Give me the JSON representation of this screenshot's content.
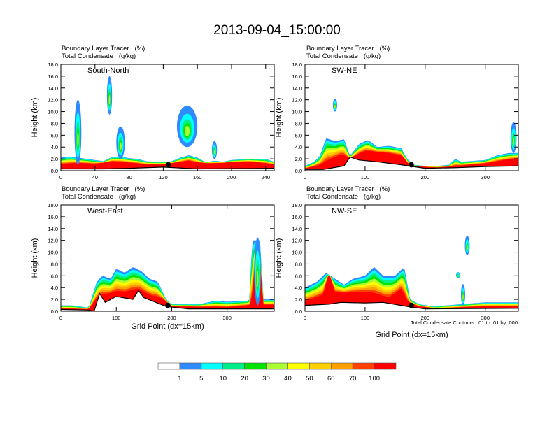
{
  "chart_data": {
    "type": "heatmap",
    "title": "2013-09-04_15:00:00",
    "subtitle_line1": "Boundary Layer Tracer   (%)",
    "subtitle_line2": "Total Condensate   (g/kg)",
    "contour_note": "Total Condensate Contours: .01 to .01 by .000",
    "xlabel": "Grid Point (dx=15km)",
    "ylabel": "Height (km)",
    "yticks": [
      "0.0",
      "2.0",
      "4.0",
      "6.0",
      "8.0",
      "10.0",
      "12.0",
      "14.0",
      "16.0",
      "18.0"
    ],
    "ylim": [
      0,
      18
    ],
    "colorbar": {
      "levels": [
        "1",
        "5",
        "10",
        "20",
        "30",
        "40",
        "50",
        "60",
        "70",
        "100"
      ],
      "colors": [
        "#ffffff",
        "#2e8bff",
        "#00ffff",
        "#00ee88",
        "#00e400",
        "#aaff33",
        "#ffff00",
        "#ffd000",
        "#ffa000",
        "#ff4000",
        "#ff0000"
      ]
    },
    "panels": [
      {
        "name": "South-North",
        "xlim": [
          0,
          250
        ],
        "xticks": [
          "0",
          "40",
          "80",
          "120",
          "160",
          "200",
          "240"
        ],
        "xtick_values": [
          0,
          40,
          80,
          120,
          160,
          200,
          240
        ],
        "marker": {
          "x": 126,
          "y": 1.0
        },
        "tracer_top": [
          [
            0,
            2.2
          ],
          [
            10,
            2.4
          ],
          [
            20,
            2.2
          ],
          [
            30,
            2.0
          ],
          [
            40,
            1.8
          ],
          [
            50,
            1.6
          ],
          [
            60,
            2.3
          ],
          [
            70,
            2.4
          ],
          [
            80,
            2.1
          ],
          [
            90,
            2.0
          ],
          [
            100,
            1.6
          ],
          [
            110,
            1.5
          ],
          [
            120,
            1.5
          ],
          [
            130,
            1.6
          ],
          [
            140,
            2.2
          ],
          [
            150,
            2.6
          ],
          [
            160,
            2.2
          ],
          [
            170,
            1.4
          ],
          [
            180,
            1.7
          ],
          [
            190,
            1.5
          ],
          [
            200,
            1.8
          ],
          [
            220,
            2.0
          ],
          [
            240,
            2.0
          ],
          [
            250,
            1.5
          ]
        ],
        "cores": [
          [
            0,
            1.0
          ],
          [
            20,
            1.2
          ],
          [
            40,
            1.1
          ],
          [
            60,
            1.5
          ],
          [
            80,
            1.3
          ],
          [
            100,
            1.0
          ],
          [
            120,
            1.0
          ],
          [
            140,
            1.4
          ],
          [
            150,
            1.6
          ],
          [
            160,
            1.3
          ],
          [
            180,
            1.2
          ],
          [
            200,
            1.4
          ],
          [
            220,
            1.5
          ],
          [
            250,
            1.0
          ]
        ],
        "plumes": [
          {
            "x": 20,
            "y0": 1,
            "y1": 12,
            "w": 4
          },
          {
            "x": 57,
            "y0": 9.5,
            "y1": 16,
            "w": 3
          },
          {
            "x": 148,
            "y0": 4,
            "y1": 11,
            "w": 12
          },
          {
            "x": 180,
            "y0": 2,
            "y1": 5,
            "w": 3
          },
          {
            "x": 70,
            "y0": 2,
            "y1": 7.5,
            "w": 5
          }
        ],
        "terrain": [
          [
            0,
            0.3
          ],
          [
            50,
            0.3
          ],
          [
            80,
            0.4
          ],
          [
            120,
            0.6
          ],
          [
            160,
            0.3
          ],
          [
            250,
            0.4
          ]
        ]
      },
      {
        "name": "SW-NE",
        "xlim": [
          0,
          355
        ],
        "xticks": [
          "0",
          "100",
          "200",
          "300"
        ],
        "xtick_values": [
          0,
          100,
          200,
          300
        ],
        "marker": {
          "x": 177,
          "y": 1.0
        },
        "tracer_top": [
          [
            0,
            0.8
          ],
          [
            15,
            1.5
          ],
          [
            25,
            2.5
          ],
          [
            35,
            5.5
          ],
          [
            50,
            5.0
          ],
          [
            65,
            5.3
          ],
          [
            75,
            2.5
          ],
          [
            90,
            4.5
          ],
          [
            105,
            5.2
          ],
          [
            120,
            4.0
          ],
          [
            140,
            4.2
          ],
          [
            160,
            3.8
          ],
          [
            170,
            2.0
          ],
          [
            180,
            1.0
          ],
          [
            200,
            0.8
          ],
          [
            220,
            0.8
          ],
          [
            240,
            1.0
          ],
          [
            250,
            2.0
          ],
          [
            260,
            1.5
          ],
          [
            300,
            1.8
          ],
          [
            320,
            2.6
          ],
          [
            340,
            3.0
          ],
          [
            355,
            3.0
          ]
        ],
        "cores": [
          [
            0,
            0.3
          ],
          [
            30,
            1.0
          ],
          [
            60,
            2.5
          ],
          [
            75,
            2.0
          ],
          [
            100,
            3.2
          ],
          [
            130,
            3.0
          ],
          [
            160,
            2.5
          ],
          [
            175,
            0.8
          ],
          [
            220,
            0.5
          ],
          [
            260,
            0.8
          ],
          [
            300,
            1.2
          ],
          [
            340,
            1.8
          ],
          [
            355,
            2.0
          ]
        ],
        "plumes": [
          {
            "x": 50,
            "y0": 10,
            "y1": 12.2,
            "w": 3
          },
          {
            "x": 347,
            "y0": 3,
            "y1": 8.2,
            "w": 5
          }
        ],
        "terrain": [
          [
            0,
            0.2
          ],
          [
            30,
            0.2
          ],
          [
            65,
            0.8
          ],
          [
            75,
            2.3
          ],
          [
            90,
            1.8
          ],
          [
            120,
            1.5
          ],
          [
            160,
            1.0
          ],
          [
            200,
            0.4
          ],
          [
            250,
            0.5
          ],
          [
            300,
            0.7
          ],
          [
            355,
            0.8
          ]
        ]
      },
      {
        "name": "West-East",
        "xlim": [
          0,
          385
        ],
        "xticks": [
          "0",
          "100",
          "200",
          "300"
        ],
        "xtick_values": [
          0,
          100,
          200,
          300
        ],
        "marker": {
          "x": 193,
          "y": 1.0
        },
        "tracer_top": [
          [
            0,
            1.0
          ],
          [
            20,
            1.0
          ],
          [
            50,
            0.6
          ],
          [
            65,
            5.0
          ],
          [
            75,
            6.0
          ],
          [
            90,
            5.5
          ],
          [
            100,
            7.2
          ],
          [
            115,
            6.5
          ],
          [
            130,
            7.5
          ],
          [
            145,
            6.8
          ],
          [
            160,
            5.5
          ],
          [
            175,
            5.0
          ],
          [
            190,
            2.0
          ],
          [
            200,
            1.2
          ],
          [
            250,
            1.2
          ],
          [
            280,
            1.8
          ],
          [
            300,
            1.6
          ],
          [
            340,
            1.8
          ],
          [
            345,
            12
          ],
          [
            360,
            12
          ],
          [
            365,
            2
          ],
          [
            385,
            2
          ]
        ],
        "cores": [
          [
            0,
            0.4
          ],
          [
            50,
            0.3
          ],
          [
            70,
            2.5
          ],
          [
            100,
            3.0
          ],
          [
            120,
            3.0
          ],
          [
            140,
            3.5
          ],
          [
            160,
            2.5
          ],
          [
            185,
            2.0
          ],
          [
            200,
            0.8
          ],
          [
            300,
            0.6
          ],
          [
            345,
            1.0
          ],
          [
            352,
            10
          ],
          [
            358,
            10
          ],
          [
            365,
            1.0
          ],
          [
            385,
            1.0
          ]
        ],
        "plumes": [
          {
            "x": 355,
            "y0": 1,
            "y1": 12.5,
            "w": 6
          }
        ],
        "terrain": [
          [
            0,
            0.3
          ],
          [
            50,
            0.2
          ],
          [
            60,
            0
          ],
          [
            70,
            3
          ],
          [
            80,
            1.5
          ],
          [
            100,
            2.5
          ],
          [
            130,
            2.0
          ],
          [
            140,
            3.5
          ],
          [
            150,
            2.3
          ],
          [
            190,
            0.8
          ],
          [
            230,
            0.4
          ],
          [
            300,
            0.4
          ],
          [
            385,
            0.4
          ]
        ]
      },
      {
        "name": "NW-SE",
        "xlim": [
          0,
          355
        ],
        "xticks": [
          "0",
          "100",
          "200",
          "300"
        ],
        "xtick_values": [
          0,
          100,
          200,
          300
        ],
        "marker": {
          "x": 177,
          "y": 1.0
        },
        "tracer_top": [
          [
            0,
            4
          ],
          [
            20,
            5
          ],
          [
            35,
            6.5
          ],
          [
            50,
            5.5
          ],
          [
            65,
            4.5
          ],
          [
            80,
            5.5
          ],
          [
            100,
            6
          ],
          [
            115,
            7.5
          ],
          [
            130,
            6
          ],
          [
            150,
            6
          ],
          [
            165,
            7.5
          ],
          [
            175,
            2
          ],
          [
            190,
            1.2
          ],
          [
            215,
            0.8
          ],
          [
            260,
            1.2
          ],
          [
            300,
            1.5
          ],
          [
            355,
            1.5
          ]
        ],
        "cores": [
          [
            0,
            1.5
          ],
          [
            30,
            2.5
          ],
          [
            40,
            6.5
          ],
          [
            50,
            3
          ],
          [
            100,
            3
          ],
          [
            140,
            2
          ],
          [
            160,
            3.5
          ],
          [
            170,
            1.5
          ],
          [
            190,
            0.8
          ],
          [
            220,
            0.4
          ],
          [
            300,
            0.8
          ],
          [
            355,
            0.8
          ]
        ],
        "plumes": [
          {
            "x": 270,
            "y0": 9.5,
            "y1": 12.8,
            "w": 4
          },
          {
            "x": 255,
            "y0": 5.6,
            "y1": 6.6,
            "w": 3
          },
          {
            "x": 263,
            "y0": 1,
            "y1": 4.6,
            "w": 1.5
          }
        ],
        "terrain": [
          [
            0,
            1.0
          ],
          [
            40,
            1.2
          ],
          [
            60,
            1.5
          ],
          [
            100,
            1.4
          ],
          [
            130,
            1.5
          ],
          [
            170,
            0.8
          ],
          [
            200,
            0.4
          ],
          [
            355,
            0.5
          ]
        ]
      }
    ]
  }
}
